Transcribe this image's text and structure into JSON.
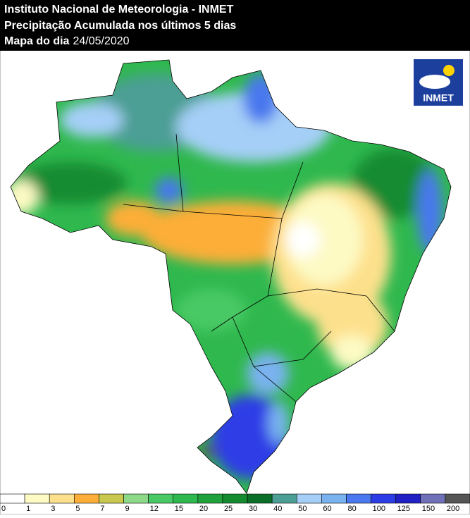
{
  "header": {
    "line1": "Instituto Nacional de Meteorologia - INMET",
    "line2": "Precipitação Acumulada nos últimos 5 dias",
    "date_label": "Mapa do dia",
    "date": "24/05/2020"
  },
  "logo": {
    "text": "INMET"
  },
  "legend": {
    "labels": [
      "0",
      "1",
      "3",
      "5",
      "7",
      "9",
      "12",
      "15",
      "20",
      "25",
      "30",
      "40",
      "50",
      "60",
      "80",
      "100",
      "125",
      "150",
      "200"
    ],
    "colors": [
      "#ffffff",
      "#fdfac4",
      "#fde08c",
      "#fcae38",
      "#c9c84e",
      "#8ed88a",
      "#48c965",
      "#2fb84e",
      "#1fa23c",
      "#148b31",
      "#0b6f2a",
      "#4b9f94",
      "#a5cff7",
      "#79b2ef",
      "#4a78ee",
      "#2d3de6",
      "#2020c4",
      "#7070b8",
      "#555555"
    ]
  }
}
